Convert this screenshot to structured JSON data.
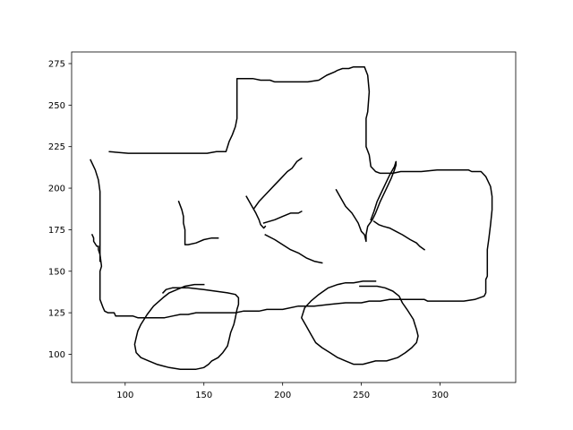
{
  "chart_data": {
    "type": "line",
    "title": "",
    "xlabel": "",
    "ylabel": "",
    "xlim": [
      66,
      348
    ],
    "ylim": [
      83,
      282
    ],
    "xticks": [
      100,
      150,
      200,
      250,
      300
    ],
    "yticks": [
      100,
      125,
      150,
      175,
      200,
      225,
      250,
      275
    ],
    "xtick_labels": [
      "100",
      "150",
      "200",
      "250",
      "300"
    ],
    "ytick_labels": [
      "100",
      "125",
      "150",
      "175",
      "200",
      "225",
      "250",
      "275"
    ],
    "grid": false,
    "legend": "none",
    "line_color": "#000000",
    "series": [
      {
        "values": [
          [
            78,
            217
          ],
          [
            81,
            211
          ],
          [
            83,
            205
          ],
          [
            84,
            198
          ],
          [
            84,
            175
          ],
          [
            84,
            160
          ],
          [
            85,
            153
          ],
          [
            84,
            150
          ],
          [
            84,
            133
          ],
          [
            86,
            128
          ],
          [
            87,
            126
          ],
          [
            89,
            125
          ],
          [
            93,
            125
          ],
          [
            94,
            123
          ],
          [
            102,
            123
          ],
          [
            105,
            123
          ],
          [
            108,
            122
          ],
          [
            120,
            122
          ],
          [
            125,
            122
          ],
          [
            130,
            123
          ],
          [
            135,
            124
          ],
          [
            140,
            124
          ],
          [
            145,
            125
          ],
          [
            155,
            125
          ],
          [
            170,
            125
          ],
          [
            175,
            126
          ],
          [
            185,
            126
          ],
          [
            190,
            127
          ],
          [
            200,
            127
          ],
          [
            210,
            129
          ],
          [
            220,
            129
          ],
          [
            230,
            130
          ],
          [
            240,
            131
          ],
          [
            250,
            131
          ],
          [
            255,
            132
          ],
          [
            262,
            132
          ],
          [
            268,
            133
          ],
          [
            290,
            133
          ],
          [
            292,
            132
          ],
          [
            300,
            132
          ],
          [
            315,
            132
          ],
          [
            322,
            133
          ],
          [
            328,
            135
          ],
          [
            329,
            137
          ],
          [
            329,
            145
          ],
          [
            330,
            147
          ],
          [
            330,
            163
          ],
          [
            331,
            170
          ],
          [
            332,
            178
          ],
          [
            333,
            187
          ],
          [
            333,
            195
          ],
          [
            332,
            201
          ],
          [
            329,
            207
          ],
          [
            326,
            210
          ],
          [
            320,
            210
          ],
          [
            318,
            211
          ],
          [
            305,
            211
          ],
          [
            298,
            211
          ],
          [
            288,
            210
          ],
          [
            275,
            210
          ],
          [
            270,
            209
          ],
          [
            262,
            209
          ],
          [
            259,
            210
          ],
          [
            256,
            213
          ],
          [
            255,
            220
          ],
          [
            253,
            225
          ],
          [
            253,
            242
          ],
          [
            254,
            246
          ],
          [
            255,
            258
          ],
          [
            254,
            268
          ],
          [
            252,
            273
          ],
          [
            250,
            273
          ],
          [
            245,
            273
          ],
          [
            242,
            272
          ],
          [
            238,
            272
          ],
          [
            235,
            271
          ],
          [
            233,
            270
          ],
          [
            228,
            268
          ],
          [
            223,
            265
          ],
          [
            216,
            264
          ],
          [
            208,
            264
          ],
          [
            195,
            264
          ],
          [
            192,
            265
          ],
          [
            186,
            265
          ],
          [
            181,
            266
          ],
          [
            171,
            266
          ],
          [
            171,
            242
          ],
          [
            170,
            237
          ],
          [
            168,
            232
          ],
          [
            166,
            228
          ],
          [
            164,
            222
          ],
          [
            158,
            222
          ],
          [
            152,
            221
          ],
          [
            144,
            221
          ],
          [
            135,
            221
          ],
          [
            128,
            221
          ],
          [
            125,
            221
          ],
          [
            112,
            221
          ],
          [
            102,
            221
          ],
          [
            90,
            222
          ]
        ]
      },
      {
        "values": [
          [
            79,
            172
          ],
          [
            80,
            170
          ],
          [
            80,
            168
          ],
          [
            82,
            165
          ],
          [
            83,
            165
          ],
          [
            83,
            163
          ],
          [
            84,
            160
          ],
          [
            84,
            156
          ]
        ]
      },
      {
        "values": [
          [
            134,
            192
          ],
          [
            136,
            187
          ],
          [
            137,
            183
          ],
          [
            137,
            179
          ],
          [
            138,
            175
          ],
          [
            138,
            166
          ],
          [
            140,
            166
          ],
          [
            145,
            167
          ],
          [
            150,
            169
          ],
          [
            155,
            170
          ],
          [
            159,
            170
          ]
        ]
      },
      {
        "values": [
          [
            177,
            195
          ],
          [
            180,
            190
          ],
          [
            183,
            185
          ],
          [
            185,
            181
          ],
          [
            186,
            178
          ],
          [
            188,
            176
          ],
          [
            189,
            177
          ]
        ]
      },
      {
        "values": [
          [
            182,
            188
          ],
          [
            185,
            192
          ],
          [
            190,
            197
          ],
          [
            195,
            202
          ],
          [
            198,
            205
          ],
          [
            203,
            210
          ],
          [
            206,
            212
          ],
          [
            209,
            216
          ],
          [
            212,
            218
          ]
        ]
      },
      {
        "values": [
          [
            188,
            179
          ],
          [
            195,
            181
          ],
          [
            200,
            183
          ],
          [
            205,
            185
          ],
          [
            210,
            185
          ],
          [
            212,
            186
          ]
        ]
      },
      {
        "values": [
          [
            189,
            172
          ],
          [
            195,
            169
          ],
          [
            200,
            166
          ],
          [
            205,
            163
          ],
          [
            210,
            161
          ],
          [
            215,
            158
          ],
          [
            220,
            156
          ],
          [
            225,
            155
          ]
        ]
      },
      {
        "values": [
          [
            234,
            199
          ],
          [
            237,
            194
          ],
          [
            240,
            189
          ],
          [
            244,
            185
          ],
          [
            246,
            182
          ],
          [
            248,
            179
          ],
          [
            250,
            174
          ],
          [
            252,
            172
          ],
          [
            253,
            168
          ],
          [
            253,
            172
          ],
          [
            254,
            177
          ],
          [
            257,
            181
          ],
          [
            259,
            185
          ],
          [
            262,
            192
          ],
          [
            266,
            200
          ],
          [
            269,
            206
          ],
          [
            271,
            211
          ],
          [
            272,
            214
          ],
          [
            272,
            216
          ],
          [
            271,
            213
          ],
          [
            268,
            208
          ],
          [
            265,
            202
          ],
          [
            262,
            196
          ],
          [
            260,
            192
          ],
          [
            258,
            186
          ],
          [
            256,
            181
          ]
        ]
      },
      {
        "values": [
          [
            258,
            180
          ],
          [
            261,
            178
          ],
          [
            264,
            177
          ],
          [
            268,
            176
          ],
          [
            272,
            174
          ],
          [
            276,
            172
          ],
          [
            281,
            169
          ],
          [
            285,
            167
          ],
          [
            287,
            165
          ],
          [
            290,
            163
          ]
        ]
      },
      {
        "values": [
          [
            124,
            137
          ],
          [
            126,
            139
          ],
          [
            130,
            140
          ],
          [
            135,
            140
          ],
          [
            140,
            140
          ],
          [
            150,
            139
          ],
          [
            165,
            137
          ],
          [
            170,
            136
          ],
          [
            172,
            134
          ],
          [
            172,
            130
          ],
          [
            171,
            127
          ],
          [
            170,
            122
          ],
          [
            169,
            118
          ],
          [
            167,
            113
          ],
          [
            166,
            109
          ],
          [
            165,
            105
          ],
          [
            162,
            101
          ],
          [
            159,
            98
          ],
          [
            155,
            96
          ],
          [
            153,
            94
          ],
          [
            150,
            92
          ],
          [
            145,
            91
          ],
          [
            140,
            91
          ],
          [
            135,
            91
          ],
          [
            128,
            92
          ],
          [
            124,
            93
          ],
          [
            120,
            94
          ],
          [
            115,
            96
          ],
          [
            110,
            98
          ],
          [
            107,
            101
          ],
          [
            106,
            106
          ],
          [
            107,
            110
          ],
          [
            108,
            114
          ],
          [
            110,
            118
          ],
          [
            114,
            124
          ],
          [
            118,
            129
          ],
          [
            124,
            134
          ],
          [
            128,
            137
          ],
          [
            133,
            139
          ],
          [
            138,
            141
          ],
          [
            144,
            142
          ],
          [
            150,
            142
          ]
        ]
      },
      {
        "values": [
          [
            249,
            141
          ],
          [
            254,
            141
          ],
          [
            260,
            141
          ],
          [
            265,
            140
          ],
          [
            270,
            138
          ],
          [
            274,
            135
          ],
          [
            276,
            131
          ],
          [
            279,
            127
          ],
          [
            281,
            124
          ],
          [
            283,
            121
          ],
          [
            284,
            118
          ],
          [
            285,
            115
          ],
          [
            286,
            111
          ],
          [
            285,
            107
          ],
          [
            282,
            104
          ],
          [
            278,
            101
          ],
          [
            273,
            98
          ],
          [
            266,
            96
          ],
          [
            259,
            96
          ],
          [
            251,
            94
          ],
          [
            245,
            94
          ],
          [
            240,
            96
          ],
          [
            235,
            98
          ],
          [
            230,
            101
          ],
          [
            225,
            104
          ],
          [
            221,
            107
          ],
          [
            218,
            112
          ],
          [
            215,
            117
          ],
          [
            212,
            122
          ],
          [
            214,
            128
          ],
          [
            218,
            132
          ],
          [
            223,
            136
          ],
          [
            229,
            140
          ],
          [
            235,
            142
          ],
          [
            240,
            143
          ],
          [
            245,
            143
          ],
          [
            251,
            144
          ],
          [
            259,
            144
          ]
        ]
      }
    ]
  }
}
